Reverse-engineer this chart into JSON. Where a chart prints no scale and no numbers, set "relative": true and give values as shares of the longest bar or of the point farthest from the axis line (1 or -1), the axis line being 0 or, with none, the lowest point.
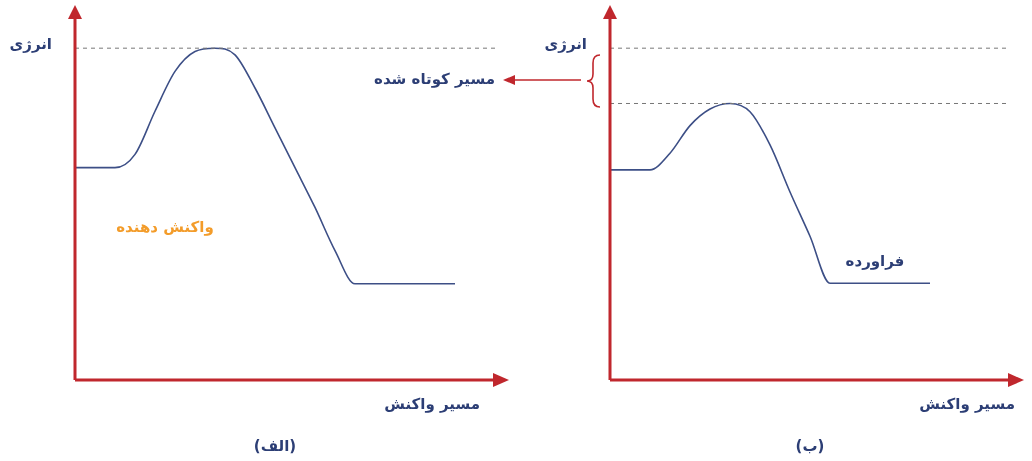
{
  "chart_data": [
    {
      "type": "line",
      "title": "(الف)",
      "xlabel": "مسیر واکنش",
      "ylabel": "انرژی",
      "relative": true,
      "marker": "none",
      "categories": [
        null,
        null,
        null,
        null,
        null,
        null,
        null,
        null,
        null,
        null,
        null,
        null,
        null,
        null,
        null,
        null,
        null,
        null,
        null,
        null,
        null,
        null
      ],
      "series": [
        {
          "color": "#3d4f86",
          "values": [
            0.64,
            0.64,
            0.64,
            0.68,
            0.81,
            0.93,
            0.99,
            1,
            0.98,
            0.88,
            0.76,
            0.64,
            0.52,
            0.39,
            0.29,
            0.29,
            0.29,
            0.29,
            0.29,
            0.29,
            null,
            null
          ]
        }
      ],
      "ref_lines": [
        {
          "axis": "y",
          "value": 1,
          "color": "#777777",
          "line_style": "dashed"
        }
      ],
      "annotations": [
        "واکنش دهنده"
      ]
    },
    {
      "type": "line",
      "title": "(ب)",
      "xlabel": "مسیر واکنش",
      "ylabel": "انرژی",
      "relative": true,
      "marker": "none",
      "categories": [
        null,
        null,
        null,
        null,
        null,
        null,
        null,
        null,
        null,
        null,
        null,
        null,
        null,
        null,
        null,
        null,
        null,
        null,
        null,
        null,
        null
      ],
      "series": [
        {
          "color": "#3d4f86",
          "values": [
            0.76,
            0.76,
            0.76,
            0.82,
            0.92,
            0.98,
            1,
            0.97,
            0.85,
            0.68,
            0.52,
            0.35,
            0.35,
            0.35,
            0.35,
            0.35,
            0.35,
            null,
            null,
            null,
            null
          ]
        }
      ],
      "ref_lines": [
        {
          "axis": "y",
          "value": 1.2,
          "color": "#777777",
          "line_style": "dashed"
        },
        {
          "axis": "y",
          "value": 1,
          "color": "#777777",
          "line_style": "dashed"
        }
      ],
      "annotations": [
        "مسیر کوتاه شده",
        "فراورده"
      ]
    }
  ]
}
